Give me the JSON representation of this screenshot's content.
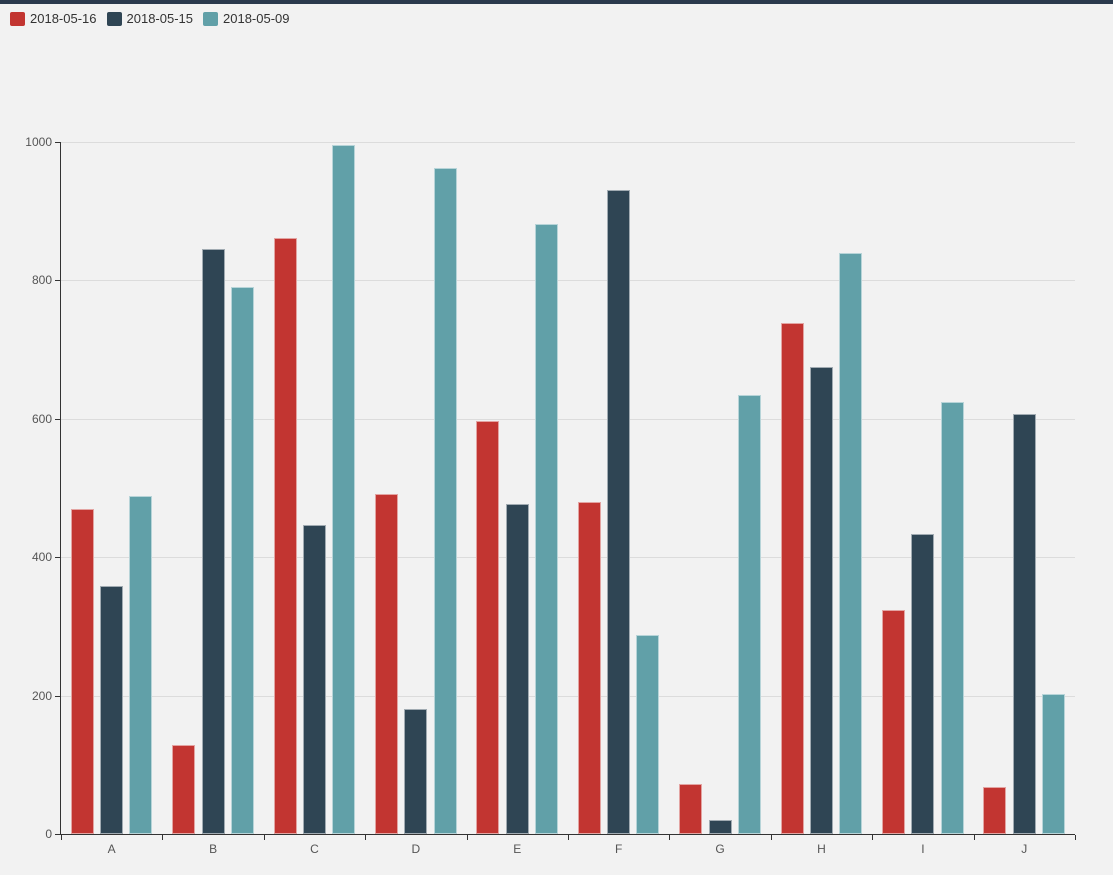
{
  "page": {
    "background_color": "#f2f2f2",
    "top_strip_color": "#2b3a4d"
  },
  "legend": {
    "items": [
      {
        "label": "2018-05-16",
        "color": "#c23531"
      },
      {
        "label": "2018-05-15",
        "color": "#2f4554"
      },
      {
        "label": "2018-05-09",
        "color": "#61a0a8"
      }
    ]
  },
  "chart_data": {
    "type": "bar",
    "title": "",
    "xlabel": "",
    "ylabel": "",
    "categories": [
      "A",
      "B",
      "C",
      "D",
      "E",
      "F",
      "G",
      "H",
      "I",
      "J"
    ],
    "series": [
      {
        "name": "2018-05-16",
        "color": "#c23531",
        "values": [
          470,
          128,
          861,
          491,
          597,
          480,
          72,
          738,
          323,
          68
        ]
      },
      {
        "name": "2018-05-15",
        "color": "#2f4554",
        "values": [
          359,
          845,
          446,
          180,
          477,
          931,
          20,
          675,
          434,
          607
        ]
      },
      {
        "name": "2018-05-09",
        "color": "#61a0a8",
        "values": [
          488,
          790,
          996,
          963,
          881,
          287,
          634,
          840,
          625,
          202
        ]
      }
    ],
    "ylim": [
      0,
      1000
    ],
    "y_ticks": [
      0,
      200,
      400,
      600,
      800,
      1000
    ],
    "grid": true,
    "legend_position": "top-left",
    "axis_color": "#333333",
    "gridline_color": "#dcdcdc",
    "tick_label_color": "#555555"
  }
}
